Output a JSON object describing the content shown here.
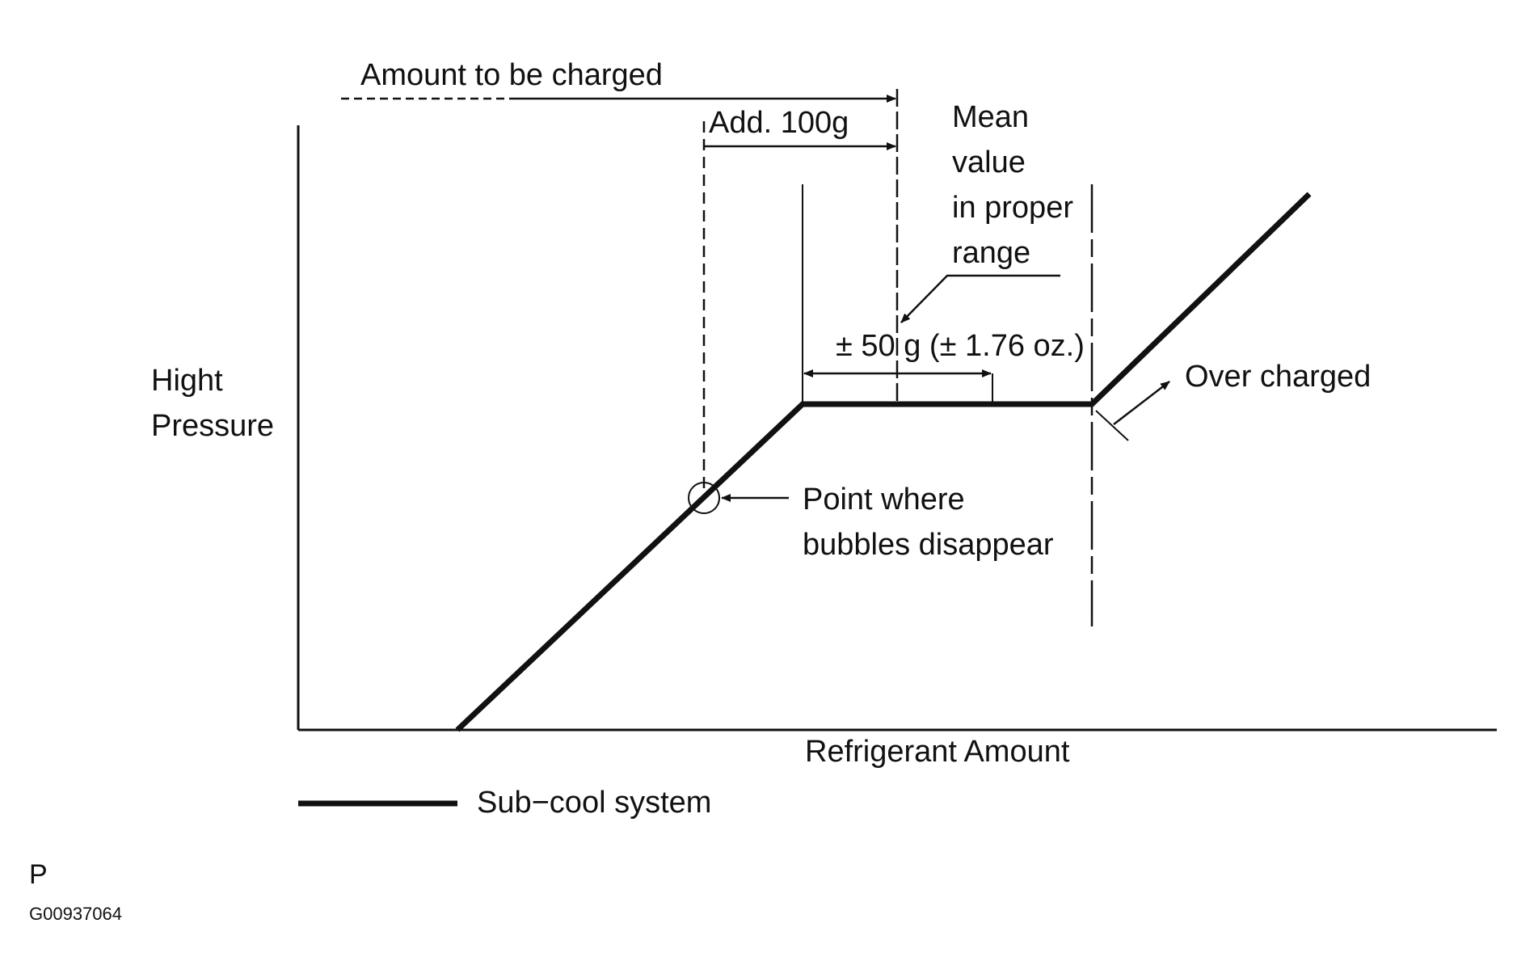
{
  "diagram": {
    "labels": {
      "amount_to_be_charged": "Amount to be charged",
      "add_100g": "Add. 100g",
      "mean_value_lines": [
        "Mean",
        "value",
        "in proper",
        "range"
      ],
      "tolerance": "± 50 g (± 1.76 oz.)",
      "over_charged": "Over charged",
      "point_where_lines": [
        "Point where",
        "bubbles disappear"
      ],
      "y_axis_lines": [
        "Hight",
        "Pressure"
      ],
      "x_axis": "Refrigerant Amount"
    },
    "legend": {
      "label": "Sub−cool system"
    },
    "footer": {
      "letter": "P",
      "code": "G00937064"
    },
    "colors": {
      "ink": "#111111",
      "background": "#ffffff"
    }
  }
}
